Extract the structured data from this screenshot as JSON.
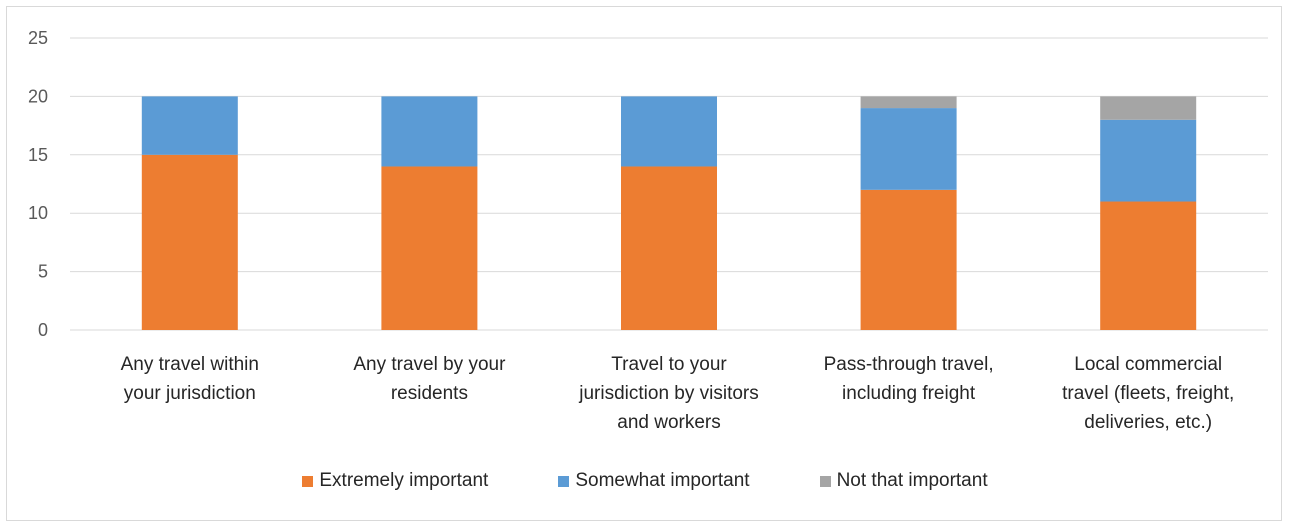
{
  "chart_data": {
    "type": "bar",
    "stacked": true,
    "categories": [
      [
        "Any travel within",
        "your jurisdiction"
      ],
      [
        "Any travel by your",
        "residents"
      ],
      [
        "Travel to your",
        "jurisdiction by visitors",
        "and workers"
      ],
      [
        "Pass-through travel,",
        "including freight"
      ],
      [
        "Local commercial",
        "travel (fleets, freight,",
        "deliveries, etc.)"
      ]
    ],
    "series": [
      {
        "name": "Extremely important",
        "color": "#ED7D31",
        "values": [
          15,
          14,
          14,
          12,
          11
        ]
      },
      {
        "name": "Somewhat important",
        "color": "#5B9BD5",
        "values": [
          5,
          6,
          6,
          7,
          7
        ]
      },
      {
        "name": "Not that important",
        "color": "#A5A5A5",
        "values": [
          0,
          0,
          0,
          1,
          2
        ]
      }
    ],
    "yticks": [
      0,
      5,
      10,
      15,
      20,
      25
    ],
    "ylim": [
      0,
      25
    ],
    "grid": true,
    "legend_position": "bottom",
    "title": "",
    "xlabel": "",
    "ylabel": ""
  }
}
